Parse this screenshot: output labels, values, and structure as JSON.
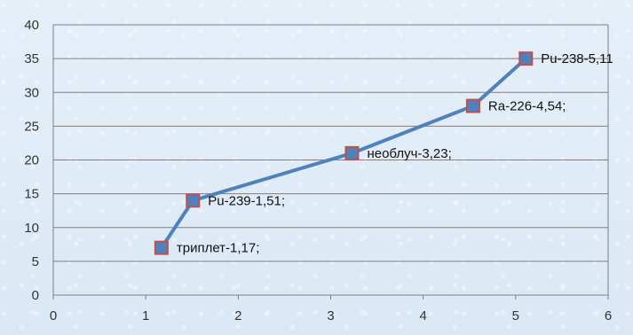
{
  "chart_data": {
    "type": "scatter",
    "title": "",
    "xlabel": "",
    "ylabel": "",
    "xlim": [
      0,
      6
    ],
    "ylim": [
      0,
      40
    ],
    "x_ticks": [
      "0",
      "1",
      "2",
      "3",
      "4",
      "5",
      "6"
    ],
    "y_ticks": [
      "0",
      "5",
      "10",
      "15",
      "20",
      "25",
      "30",
      "35",
      "40"
    ],
    "grid": true,
    "legend": "none",
    "series": [
      {
        "color": "#4f81bd",
        "marker_border": "#c0504d",
        "points": [
          {
            "x": 1.17,
            "y": 7,
            "label": "триплет-1,17;"
          },
          {
            "x": 1.51,
            "y": 14,
            "label": "Pu-239-1,51;"
          },
          {
            "x": 3.23,
            "y": 21,
            "label": "необлуч-3,23;"
          },
          {
            "x": 4.54,
            "y": 28,
            "label": "Ra-226-4,54;"
          },
          {
            "x": 5.11,
            "y": 35,
            "label": "Pu-238-5,11"
          }
        ]
      }
    ]
  }
}
